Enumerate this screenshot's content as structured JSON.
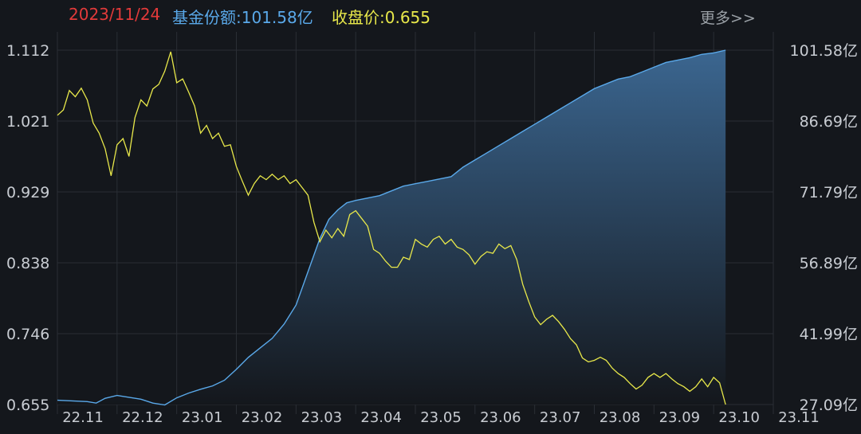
{
  "header": {
    "date": "2023/11/24",
    "share_label": "基金份额:101.58亿",
    "close_label": "收盘价:0.655",
    "more": "更多>>"
  },
  "colors": {
    "background": "#14171c",
    "grid": "#2a2e35",
    "price_line": "#e8e84a",
    "share_line": "#5aa9ea",
    "share_fill_top": "#3b6690",
    "share_fill_bottom": "#14171c",
    "axis_text": "#c8ccd2",
    "date_text": "#e23a3a"
  },
  "chart_data": {
    "type": "line",
    "x_ticks": [
      "22.11",
      "22.12",
      "23.01",
      "23.02",
      "23.03",
      "23.04",
      "23.05",
      "23.06",
      "23.07",
      "23.08",
      "23.09",
      "23.10",
      "23.11"
    ],
    "y_left_ticks": [
      "1.112",
      "1.021",
      "0.929",
      "0.838",
      "0.746",
      "0.655"
    ],
    "y_right_ticks": [
      "101.58亿",
      "86.69亿",
      "71.79亿",
      "56.89亿",
      "41.99亿",
      "27.09亿"
    ],
    "y_left_range": [
      0.655,
      1.112
    ],
    "y_right_range": [
      27.09,
      101.58
    ],
    "x_range": [
      0,
      12
    ],
    "grid": true,
    "series": [
      {
        "axis": "left",
        "style": "line",
        "values": [
          [
            0.0,
            1.028
          ],
          [
            0.1,
            1.035
          ],
          [
            0.2,
            1.06
          ],
          [
            0.3,
            1.052
          ],
          [
            0.4,
            1.063
          ],
          [
            0.5,
            1.048
          ],
          [
            0.6,
            1.018
          ],
          [
            0.7,
            1.005
          ],
          [
            0.8,
            0.985
          ],
          [
            0.9,
            0.95
          ],
          [
            1.0,
            0.99
          ],
          [
            1.1,
            0.998
          ],
          [
            1.2,
            0.975
          ],
          [
            1.3,
            1.025
          ],
          [
            1.4,
            1.048
          ],
          [
            1.5,
            1.04
          ],
          [
            1.6,
            1.062
          ],
          [
            1.7,
            1.068
          ],
          [
            1.8,
            1.085
          ],
          [
            1.9,
            1.11
          ],
          [
            2.0,
            1.07
          ],
          [
            2.1,
            1.075
          ],
          [
            2.2,
            1.058
          ],
          [
            2.3,
            1.04
          ],
          [
            2.4,
            1.005
          ],
          [
            2.5,
            1.015
          ],
          [
            2.6,
            0.998
          ],
          [
            2.7,
            1.005
          ],
          [
            2.8,
            0.988
          ],
          [
            2.9,
            0.99
          ],
          [
            3.0,
            0.962
          ],
          [
            3.1,
            0.943
          ],
          [
            3.2,
            0.925
          ],
          [
            3.3,
            0.94
          ],
          [
            3.4,
            0.95
          ],
          [
            3.5,
            0.945
          ],
          [
            3.6,
            0.952
          ],
          [
            3.7,
            0.945
          ],
          [
            3.8,
            0.95
          ],
          [
            3.9,
            0.94
          ],
          [
            4.0,
            0.945
          ],
          [
            4.1,
            0.935
          ],
          [
            4.2,
            0.925
          ],
          [
            4.3,
            0.89
          ],
          [
            4.4,
            0.865
          ],
          [
            4.5,
            0.88
          ],
          [
            4.6,
            0.87
          ],
          [
            4.7,
            0.882
          ],
          [
            4.8,
            0.872
          ],
          [
            4.9,
            0.9
          ],
          [
            5.0,
            0.905
          ],
          [
            5.1,
            0.895
          ],
          [
            5.2,
            0.885
          ],
          [
            5.3,
            0.855
          ],
          [
            5.4,
            0.85
          ],
          [
            5.5,
            0.84
          ],
          [
            5.6,
            0.832
          ],
          [
            5.7,
            0.832
          ],
          [
            5.8,
            0.845
          ],
          [
            5.9,
            0.842
          ],
          [
            6.0,
            0.868
          ],
          [
            6.1,
            0.862
          ],
          [
            6.2,
            0.858
          ],
          [
            6.3,
            0.868
          ],
          [
            6.4,
            0.872
          ],
          [
            6.5,
            0.862
          ],
          [
            6.6,
            0.868
          ],
          [
            6.7,
            0.858
          ],
          [
            6.8,
            0.855
          ],
          [
            6.9,
            0.848
          ],
          [
            7.0,
            0.836
          ],
          [
            7.1,
            0.846
          ],
          [
            7.2,
            0.852
          ],
          [
            7.3,
            0.85
          ],
          [
            7.4,
            0.862
          ],
          [
            7.5,
            0.856
          ],
          [
            7.6,
            0.86
          ],
          [
            7.7,
            0.842
          ],
          [
            7.8,
            0.81
          ],
          [
            7.9,
            0.788
          ],
          [
            8.0,
            0.768
          ],
          [
            8.1,
            0.758
          ],
          [
            8.2,
            0.765
          ],
          [
            8.3,
            0.77
          ],
          [
            8.4,
            0.762
          ],
          [
            8.5,
            0.752
          ],
          [
            8.6,
            0.74
          ],
          [
            8.7,
            0.732
          ],
          [
            8.8,
            0.715
          ],
          [
            8.9,
            0.71
          ],
          [
            9.0,
            0.712
          ],
          [
            9.1,
            0.716
          ],
          [
            9.2,
            0.712
          ],
          [
            9.3,
            0.702
          ],
          [
            9.4,
            0.695
          ],
          [
            9.5,
            0.69
          ],
          [
            9.6,
            0.682
          ],
          [
            9.7,
            0.675
          ],
          [
            9.8,
            0.68
          ],
          [
            9.9,
            0.69
          ],
          [
            10.0,
            0.695
          ],
          [
            10.1,
            0.69
          ],
          [
            10.2,
            0.695
          ],
          [
            10.3,
            0.688
          ],
          [
            10.4,
            0.682
          ],
          [
            10.5,
            0.678
          ],
          [
            10.6,
            0.672
          ],
          [
            10.7,
            0.678
          ],
          [
            10.8,
            0.688
          ],
          [
            10.9,
            0.678
          ],
          [
            11.0,
            0.69
          ],
          [
            11.1,
            0.683
          ],
          [
            11.2,
            0.655
          ]
        ]
      },
      {
        "axis": "right",
        "style": "area",
        "values": [
          [
            0.0,
            28.0
          ],
          [
            0.5,
            27.7
          ],
          [
            0.65,
            27.4
          ],
          [
            0.8,
            28.4
          ],
          [
            1.0,
            29.0
          ],
          [
            1.2,
            28.6
          ],
          [
            1.4,
            28.2
          ],
          [
            1.6,
            27.4
          ],
          [
            1.8,
            27.0
          ],
          [
            2.0,
            28.5
          ],
          [
            2.2,
            29.5
          ],
          [
            2.4,
            30.3
          ],
          [
            2.6,
            31.0
          ],
          [
            2.8,
            32.2
          ],
          [
            3.0,
            34.5
          ],
          [
            3.2,
            37.0
          ],
          [
            3.4,
            39.0
          ],
          [
            3.6,
            41.0
          ],
          [
            3.8,
            44.0
          ],
          [
            4.0,
            48.0
          ],
          [
            4.2,
            55.0
          ],
          [
            4.4,
            62.0
          ],
          [
            4.55,
            66.0
          ],
          [
            4.7,
            68.0
          ],
          [
            4.85,
            69.5
          ],
          [
            5.0,
            70.0
          ],
          [
            5.2,
            70.5
          ],
          [
            5.4,
            71.0
          ],
          [
            5.6,
            72.0
          ],
          [
            5.8,
            73.0
          ],
          [
            6.0,
            73.5
          ],
          [
            6.2,
            74.0
          ],
          [
            6.4,
            74.5
          ],
          [
            6.6,
            75.0
          ],
          [
            6.8,
            77.0
          ],
          [
            7.0,
            78.5
          ],
          [
            7.2,
            80.0
          ],
          [
            7.4,
            81.5
          ],
          [
            7.6,
            83.0
          ],
          [
            7.8,
            84.5
          ],
          [
            8.0,
            86.0
          ],
          [
            8.2,
            87.5
          ],
          [
            8.4,
            89.0
          ],
          [
            8.6,
            90.5
          ],
          [
            8.8,
            92.0
          ],
          [
            9.0,
            93.5
          ],
          [
            9.2,
            94.5
          ],
          [
            9.4,
            95.5
          ],
          [
            9.6,
            96.0
          ],
          [
            9.8,
            97.0
          ],
          [
            10.0,
            98.0
          ],
          [
            10.2,
            99.0
          ],
          [
            10.4,
            99.5
          ],
          [
            10.6,
            100.0
          ],
          [
            10.8,
            100.7
          ],
          [
            11.0,
            101.0
          ],
          [
            11.2,
            101.58
          ]
        ]
      }
    ]
  }
}
